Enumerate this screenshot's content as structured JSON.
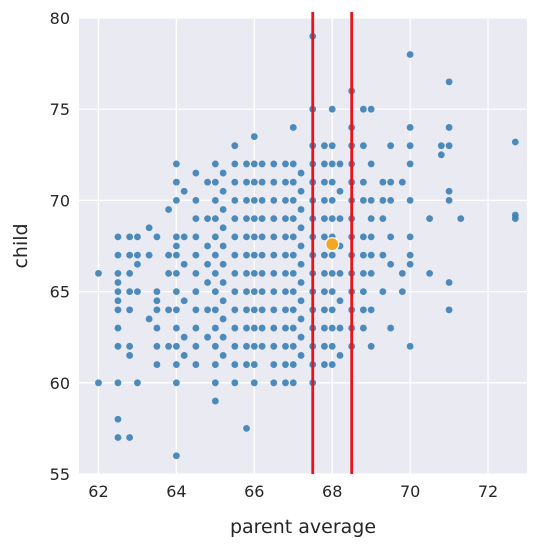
{
  "chart_data": {
    "type": "scatter",
    "xlabel": "parent average",
    "ylabel": "child",
    "xlim": [
      61.5,
      73.0
    ],
    "ylim": [
      55,
      80
    ],
    "xticks": [
      "62",
      "64",
      "66",
      "68",
      "70",
      "72"
    ],
    "yticks": [
      "55",
      "60",
      "65",
      "70",
      "75",
      "80"
    ],
    "grid": true,
    "colors": {
      "background": "#EAEAF2",
      "grid": "#FFFFFF",
      "points": "#3A7FB4",
      "highlight": "#F5A623",
      "vlines": "#E8141A"
    },
    "vlines": [
      67.5,
      68.5
    ],
    "highlight_point": {
      "x": 68.0,
      "y": 67.6
    },
    "points": [
      [
        62.0,
        66.0
      ],
      [
        62.0,
        60.0
      ],
      [
        62.5,
        68.0
      ],
      [
        62.5,
        67.0
      ],
      [
        62.5,
        66.0
      ],
      [
        62.5,
        65.5
      ],
      [
        62.5,
        65.0
      ],
      [
        62.5,
        64.5
      ],
      [
        62.5,
        64.0
      ],
      [
        62.5,
        63.0
      ],
      [
        62.5,
        62.0
      ],
      [
        62.5,
        58.0
      ],
      [
        62.5,
        57.0
      ],
      [
        62.5,
        60.0
      ],
      [
        62.8,
        68.0
      ],
      [
        62.8,
        67.0
      ],
      [
        62.8,
        66.0
      ],
      [
        62.8,
        65.0
      ],
      [
        62.8,
        64.0
      ],
      [
        62.8,
        62.0
      ],
      [
        62.8,
        57.0
      ],
      [
        62.8,
        61.5
      ],
      [
        63.0,
        68.0
      ],
      [
        63.0,
        66.5
      ],
      [
        63.0,
        65.0
      ],
      [
        63.0,
        60.0
      ],
      [
        63.0,
        67.0
      ],
      [
        63.3,
        68.5
      ],
      [
        63.3,
        63.5
      ],
      [
        63.3,
        67.0
      ],
      [
        63.5,
        65.0
      ],
      [
        63.5,
        64.5
      ],
      [
        63.5,
        64.0
      ],
      [
        63.5,
        63.0
      ],
      [
        63.5,
        62.0
      ],
      [
        63.5,
        61.0
      ],
      [
        63.5,
        68.0
      ],
      [
        63.8,
        69.5
      ],
      [
        63.8,
        67.0
      ],
      [
        63.8,
        66.0
      ],
      [
        63.8,
        64.0
      ],
      [
        63.8,
        62.0
      ],
      [
        64.0,
        72.0
      ],
      [
        64.0,
        71.0
      ],
      [
        64.0,
        70.0
      ],
      [
        64.0,
        68.0
      ],
      [
        64.0,
        67.5
      ],
      [
        64.0,
        67.0
      ],
      [
        64.0,
        66.0
      ],
      [
        64.0,
        65.0
      ],
      [
        64.0,
        64.0
      ],
      [
        64.0,
        63.0
      ],
      [
        64.0,
        62.0
      ],
      [
        64.0,
        61.0
      ],
      [
        64.0,
        60.0
      ],
      [
        64.0,
        56.0
      ],
      [
        64.2,
        70.5
      ],
      [
        64.2,
        68.0
      ],
      [
        64.2,
        66.5
      ],
      [
        64.2,
        64.5
      ],
      [
        64.2,
        62.5
      ],
      [
        64.2,
        61.5
      ],
      [
        64.5,
        71.5
      ],
      [
        64.5,
        70.0
      ],
      [
        64.5,
        69.0
      ],
      [
        64.5,
        68.0
      ],
      [
        64.5,
        67.0
      ],
      [
        64.5,
        66.0
      ],
      [
        64.5,
        65.0
      ],
      [
        64.5,
        64.0
      ],
      [
        64.5,
        63.0
      ],
      [
        64.5,
        62.0
      ],
      [
        64.5,
        61.0
      ],
      [
        64.8,
        71.0
      ],
      [
        64.8,
        69.0
      ],
      [
        64.8,
        67.5
      ],
      [
        64.8,
        66.5
      ],
      [
        64.8,
        65.5
      ],
      [
        64.8,
        64.0
      ],
      [
        64.8,
        62.5
      ],
      [
        65.0,
        72.0
      ],
      [
        65.0,
        71.0
      ],
      [
        65.0,
        70.0
      ],
      [
        65.0,
        69.0
      ],
      [
        65.0,
        68.0
      ],
      [
        65.0,
        67.0
      ],
      [
        65.0,
        66.0
      ],
      [
        65.0,
        65.0
      ],
      [
        65.0,
        64.0
      ],
      [
        65.0,
        63.0
      ],
      [
        65.0,
        62.0
      ],
      [
        65.0,
        61.0
      ],
      [
        65.0,
        60.0
      ],
      [
        65.0,
        59.0
      ],
      [
        65.2,
        71.5
      ],
      [
        65.2,
        70.5
      ],
      [
        65.2,
        69.5
      ],
      [
        65.2,
        68.5
      ],
      [
        65.2,
        67.5
      ],
      [
        65.2,
        66.5
      ],
      [
        65.2,
        65.5
      ],
      [
        65.2,
        64.5
      ],
      [
        65.2,
        63.5
      ],
      [
        65.2,
        62.5
      ],
      [
        65.2,
        61.5
      ],
      [
        65.5,
        73.0
      ],
      [
        65.5,
        72.0
      ],
      [
        65.5,
        71.0
      ],
      [
        65.5,
        70.0
      ],
      [
        65.5,
        69.0
      ],
      [
        65.5,
        68.0
      ],
      [
        65.5,
        67.0
      ],
      [
        65.5,
        66.0
      ],
      [
        65.5,
        65.0
      ],
      [
        65.5,
        64.0
      ],
      [
        65.5,
        63.0
      ],
      [
        65.5,
        62.0
      ],
      [
        65.5,
        61.0
      ],
      [
        65.5,
        60.0
      ],
      [
        65.8,
        72.0
      ],
      [
        65.8,
        71.0
      ],
      [
        65.8,
        70.0
      ],
      [
        65.8,
        69.0
      ],
      [
        65.8,
        68.0
      ],
      [
        65.8,
        67.0
      ],
      [
        65.8,
        66.0
      ],
      [
        65.8,
        65.0
      ],
      [
        65.8,
        64.0
      ],
      [
        65.8,
        63.0
      ],
      [
        65.8,
        62.0
      ],
      [
        65.8,
        61.0
      ],
      [
        65.8,
        57.5
      ],
      [
        66.0,
        73.5
      ],
      [
        66.0,
        72.0
      ],
      [
        66.0,
        71.0
      ],
      [
        66.0,
        70.0
      ],
      [
        66.0,
        69.0
      ],
      [
        66.0,
        68.0
      ],
      [
        66.0,
        67.0
      ],
      [
        66.0,
        66.0
      ],
      [
        66.0,
        65.0
      ],
      [
        66.0,
        64.0
      ],
      [
        66.0,
        63.0
      ],
      [
        66.0,
        62.0
      ],
      [
        66.0,
        61.0
      ],
      [
        66.0,
        60.0
      ],
      [
        66.2,
        72.0
      ],
      [
        66.2,
        71.0
      ],
      [
        66.2,
        70.0
      ],
      [
        66.2,
        69.0
      ],
      [
        66.2,
        68.0
      ],
      [
        66.2,
        67.0
      ],
      [
        66.2,
        66.0
      ],
      [
        66.2,
        65.0
      ],
      [
        66.2,
        64.0
      ],
      [
        66.2,
        63.0
      ],
      [
        66.2,
        62.0
      ],
      [
        66.5,
        72.0
      ],
      [
        66.5,
        71.0
      ],
      [
        66.5,
        70.0
      ],
      [
        66.5,
        69.0
      ],
      [
        66.5,
        68.0
      ],
      [
        66.5,
        67.0
      ],
      [
        66.5,
        66.0
      ],
      [
        66.5,
        65.0
      ],
      [
        66.5,
        64.0
      ],
      [
        66.5,
        63.0
      ],
      [
        66.5,
        62.0
      ],
      [
        66.5,
        61.0
      ],
      [
        66.5,
        60.0
      ],
      [
        66.8,
        72.0
      ],
      [
        66.8,
        71.0
      ],
      [
        66.8,
        70.0
      ],
      [
        66.8,
        69.0
      ],
      [
        66.8,
        68.0
      ],
      [
        66.8,
        67.0
      ],
      [
        66.8,
        66.0
      ],
      [
        66.8,
        65.0
      ],
      [
        66.8,
        64.0
      ],
      [
        66.8,
        63.0
      ],
      [
        66.8,
        62.0
      ],
      [
        66.8,
        61.0
      ],
      [
        66.8,
        60.0
      ],
      [
        67.0,
        74.0
      ],
      [
        67.0,
        72.0
      ],
      [
        67.0,
        71.0
      ],
      [
        67.0,
        70.0
      ],
      [
        67.0,
        69.0
      ],
      [
        67.0,
        68.0
      ],
      [
        67.0,
        67.0
      ],
      [
        67.0,
        66.0
      ],
      [
        67.0,
        65.0
      ],
      [
        67.0,
        64.0
      ],
      [
        67.0,
        63.0
      ],
      [
        67.0,
        62.0
      ],
      [
        67.0,
        61.0
      ],
      [
        67.0,
        60.0
      ],
      [
        67.2,
        71.5
      ],
      [
        67.2,
        70.5
      ],
      [
        67.2,
        69.5
      ],
      [
        67.2,
        68.5
      ],
      [
        67.2,
        67.5
      ],
      [
        67.2,
        66.5
      ],
      [
        67.2,
        65.5
      ],
      [
        67.2,
        64.5
      ],
      [
        67.2,
        63.5
      ],
      [
        67.2,
        62.5
      ],
      [
        67.2,
        61.5
      ],
      [
        67.5,
        79.0
      ],
      [
        67.5,
        75.0
      ],
      [
        67.5,
        73.0
      ],
      [
        67.5,
        72.0
      ],
      [
        67.5,
        71.0
      ],
      [
        67.5,
        70.0
      ],
      [
        67.5,
        69.0
      ],
      [
        67.5,
        68.0
      ],
      [
        67.5,
        67.0
      ],
      [
        67.5,
        66.0
      ],
      [
        67.5,
        65.0
      ],
      [
        67.5,
        64.0
      ],
      [
        67.5,
        63.0
      ],
      [
        67.5,
        62.0
      ],
      [
        67.5,
        61.0
      ],
      [
        67.5,
        60.0
      ],
      [
        67.8,
        73.0
      ],
      [
        67.8,
        72.0
      ],
      [
        67.8,
        71.0
      ],
      [
        67.8,
        70.0
      ],
      [
        67.8,
        69.0
      ],
      [
        67.8,
        68.0
      ],
      [
        67.8,
        67.0
      ],
      [
        67.8,
        66.0
      ],
      [
        67.8,
        65.0
      ],
      [
        67.8,
        64.0
      ],
      [
        67.8,
        63.0
      ],
      [
        67.8,
        62.0
      ],
      [
        67.8,
        61.0
      ],
      [
        68.0,
        75.0
      ],
      [
        68.0,
        73.0
      ],
      [
        68.0,
        72.0
      ],
      [
        68.0,
        71.0
      ],
      [
        68.0,
        70.0
      ],
      [
        68.0,
        69.0
      ],
      [
        68.0,
        68.0
      ],
      [
        68.0,
        67.0
      ],
      [
        68.0,
        66.0
      ],
      [
        68.0,
        65.0
      ],
      [
        68.0,
        64.0
      ],
      [
        68.0,
        63.0
      ],
      [
        68.0,
        62.0
      ],
      [
        68.0,
        61.0
      ],
      [
        68.2,
        72.0
      ],
      [
        68.2,
        70.5
      ],
      [
        68.2,
        69.0
      ],
      [
        68.2,
        67.5
      ],
      [
        68.2,
        66.0
      ],
      [
        68.2,
        64.5
      ],
      [
        68.2,
        63.0
      ],
      [
        68.2,
        61.5
      ],
      [
        68.5,
        76.0
      ],
      [
        68.5,
        74.0
      ],
      [
        68.5,
        73.0
      ],
      [
        68.5,
        72.0
      ],
      [
        68.5,
        71.0
      ],
      [
        68.5,
        70.0
      ],
      [
        68.5,
        69.0
      ],
      [
        68.5,
        68.0
      ],
      [
        68.5,
        67.0
      ],
      [
        68.5,
        66.0
      ],
      [
        68.5,
        65.0
      ],
      [
        68.5,
        64.0
      ],
      [
        68.5,
        63.0
      ],
      [
        68.5,
        62.0
      ],
      [
        68.8,
        75.0
      ],
      [
        68.8,
        73.0
      ],
      [
        68.8,
        71.0
      ],
      [
        68.8,
        70.0
      ],
      [
        68.8,
        68.0
      ],
      [
        68.8,
        67.0
      ],
      [
        68.8,
        66.0
      ],
      [
        68.8,
        65.0
      ],
      [
        68.8,
        64.0
      ],
      [
        68.8,
        63.0
      ],
      [
        69.0,
        75.0
      ],
      [
        69.0,
        72.0
      ],
      [
        69.0,
        70.0
      ],
      [
        69.0,
        69.0
      ],
      [
        69.0,
        68.0
      ],
      [
        69.0,
        67.0
      ],
      [
        69.0,
        66.0
      ],
      [
        69.0,
        64.0
      ],
      [
        69.0,
        62.0
      ],
      [
        69.3,
        71.0
      ],
      [
        69.3,
        70.0
      ],
      [
        69.3,
        69.0
      ],
      [
        69.3,
        67.0
      ],
      [
        69.3,
        65.0
      ],
      [
        69.5,
        73.0
      ],
      [
        69.5,
        71.0
      ],
      [
        69.5,
        70.0
      ],
      [
        69.5,
        68.0
      ],
      [
        69.5,
        66.5
      ],
      [
        69.5,
        63.0
      ],
      [
        69.8,
        71.0
      ],
      [
        69.8,
        66.0
      ],
      [
        69.8,
        65.0
      ],
      [
        70.0,
        78.0
      ],
      [
        70.0,
        74.0
      ],
      [
        70.0,
        73.0
      ],
      [
        70.0,
        72.0
      ],
      [
        70.0,
        70.0
      ],
      [
        70.0,
        68.0
      ],
      [
        70.0,
        67.0
      ],
      [
        70.0,
        66.5
      ],
      [
        70.0,
        62.0
      ],
      [
        70.5,
        69.0
      ],
      [
        70.5,
        66.0
      ],
      [
        70.8,
        73.0
      ],
      [
        70.8,
        72.5
      ],
      [
        71.0,
        76.5
      ],
      [
        71.0,
        74.0
      ],
      [
        71.0,
        73.0
      ],
      [
        71.0,
        70.5
      ],
      [
        71.0,
        70.0
      ],
      [
        71.0,
        65.5
      ],
      [
        71.0,
        64.0
      ],
      [
        71.3,
        69.0
      ],
      [
        72.7,
        73.2
      ],
      [
        72.7,
        69.2
      ],
      [
        72.7,
        69.0
      ]
    ]
  }
}
